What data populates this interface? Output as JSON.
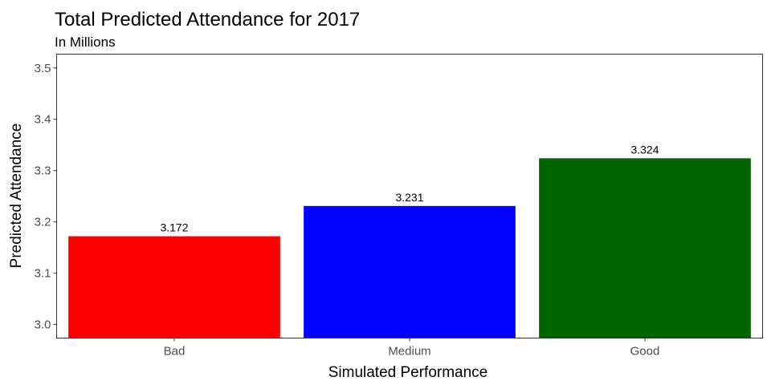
{
  "chart_data": {
    "type": "bar",
    "title": "Total Predicted Attendance for 2017",
    "subtitle": "In Millions",
    "xlabel": "Simulated Performance",
    "ylabel": "Predicted Attendance",
    "categories": [
      "Bad",
      "Medium",
      "Good"
    ],
    "values": [
      3.172,
      3.231,
      3.324
    ],
    "value_labels": [
      "3.172",
      "3.231",
      "3.324"
    ],
    "colors": [
      "#ff0000",
      "#0000ff",
      "#006400"
    ],
    "yticks": [
      3.0,
      3.1,
      3.2,
      3.3,
      3.4,
      3.5
    ],
    "ytick_labels": [
      "3.0",
      "3.1",
      "3.2",
      "3.3",
      "3.4",
      "3.5"
    ],
    "ylim": [
      2.9735,
      3.527
    ],
    "grid": false,
    "legend": "none",
    "panel_border_color": "#333333"
  }
}
